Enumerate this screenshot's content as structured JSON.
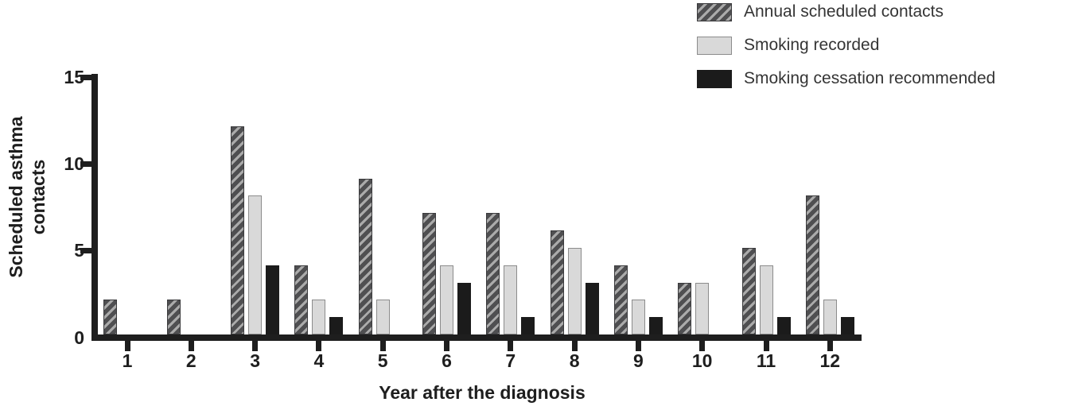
{
  "chart_data": {
    "type": "bar",
    "title": "",
    "xlabel": "Year after the diagnosis",
    "ylabel": "Scheduled asthma contacts",
    "ylabel_lines": {
      "line1": "Scheduled asthma",
      "line2": "contacts"
    },
    "categories": [
      "1",
      "2",
      "3",
      "4",
      "5",
      "6",
      "7",
      "8",
      "9",
      "10",
      "11",
      "12"
    ],
    "series": [
      {
        "name": "Annual scheduled contacts",
        "style": "hatched",
        "values": [
          2,
          2,
          12,
          4,
          9,
          7,
          7,
          6,
          4,
          3,
          5,
          8
        ]
      },
      {
        "name": "Smoking recorded",
        "style": "light",
        "values": [
          0,
          0,
          8,
          2,
          2,
          4,
          4,
          5,
          2,
          3,
          4,
          2
        ]
      },
      {
        "name": "Smoking cessation recommended",
        "style": "dark",
        "values": [
          0,
          0,
          4,
          1,
          0,
          3,
          1,
          3,
          1,
          0,
          1,
          1
        ]
      }
    ],
    "ylim": [
      0,
      15
    ],
    "yticks": [
      0,
      5,
      10,
      15
    ],
    "grid": false,
    "legend_position": "top-right",
    "colors": {
      "axis": "#1e1e1e",
      "text": "#1e1e1e",
      "hatch_base": "#4f4f51",
      "hatch_stripe": "#ababab",
      "light_fill": "#d9d9d9",
      "light_border": "#8c8c8c",
      "dark_fill": "#1b1b1b"
    }
  }
}
